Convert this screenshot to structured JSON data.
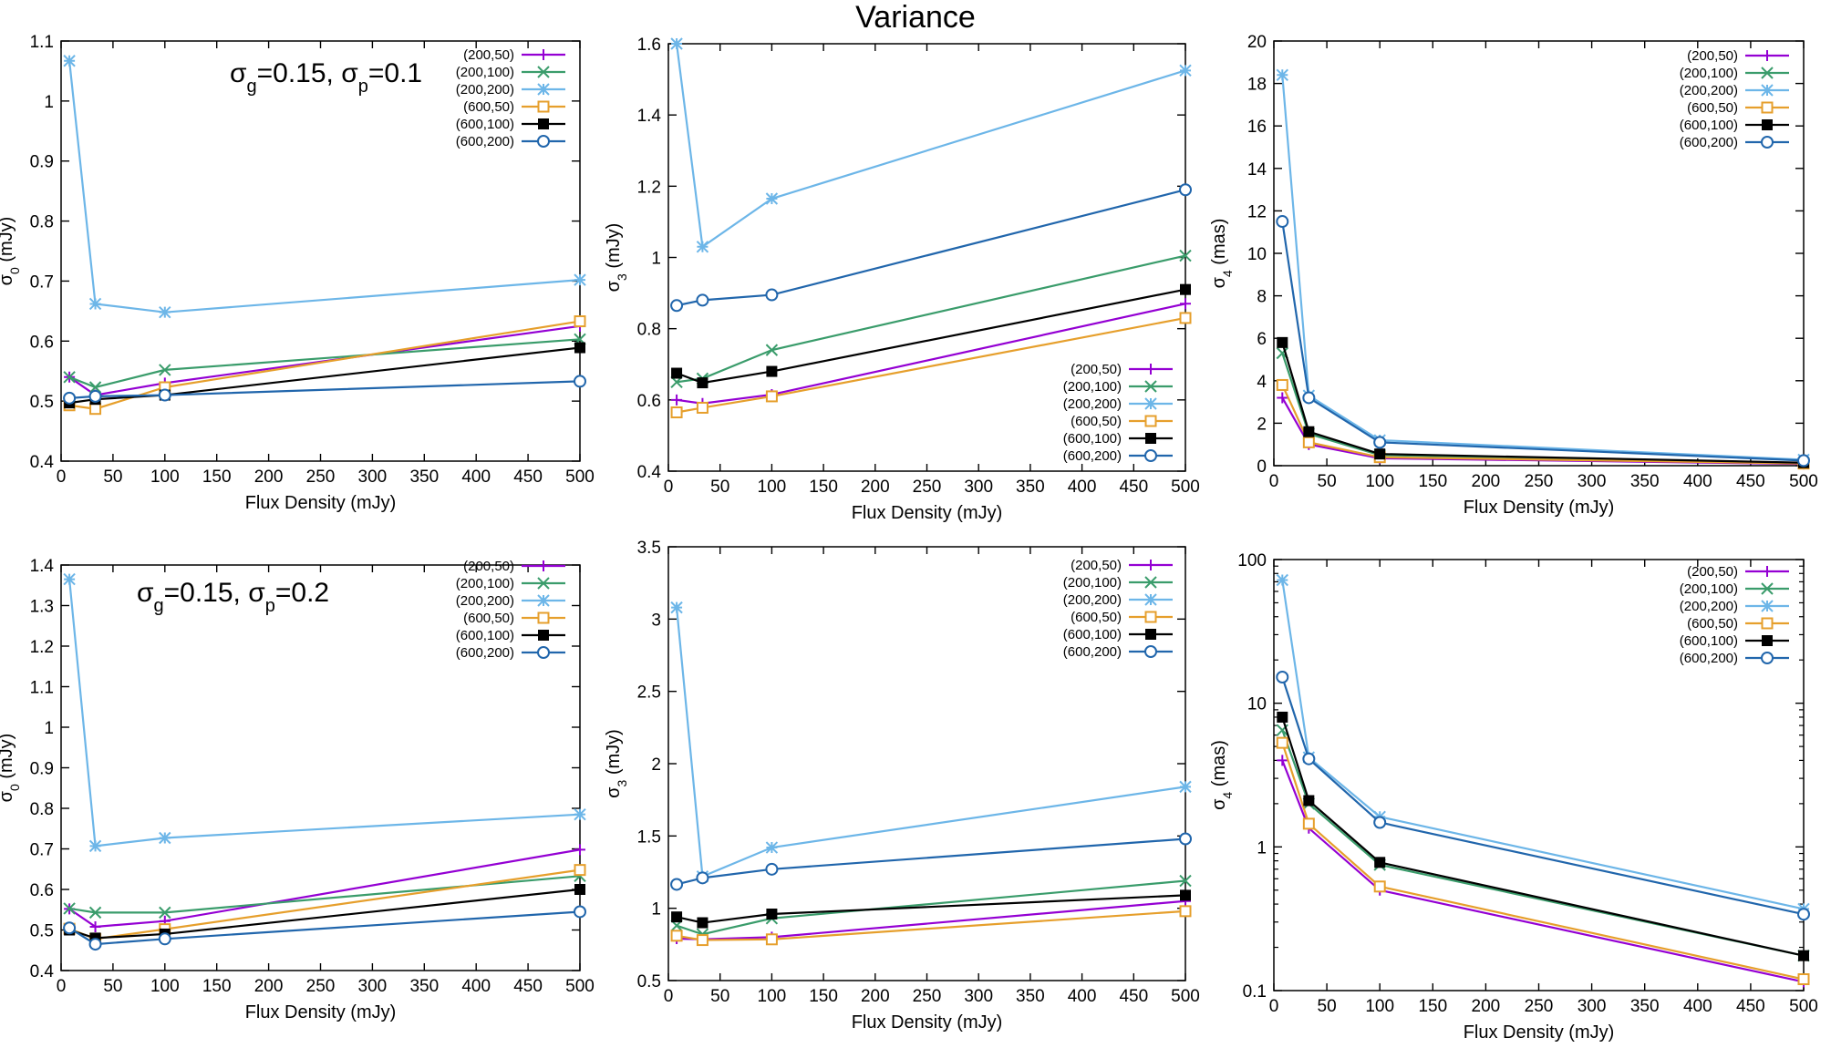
{
  "figure": {
    "title": "Variance"
  },
  "colors": {
    "(200,50)": "#9400d3",
    "(200,100)": "#3a9c6b",
    "(200,200)": "#6db6e8",
    "(600,50)": "#e69f2c",
    "(600,100)": "#000000",
    "(600,200)": "#2166ac"
  },
  "markers": {
    "(200,50)": "plus",
    "(200,100)": "cross",
    "(200,200)": "star",
    "(600,50)": "open-square",
    "(600,100)": "filled-square",
    "(600,200)": "open-circle"
  },
  "chart_data": [
    {
      "type": "line",
      "name": "top-left",
      "title": "",
      "xlabel": "Flux Density (mJy)",
      "ylabel": "σ_0 (mJy)",
      "ylabel_main": "σ",
      "ylabel_sub": "0",
      "ylabel_tail": " (mJy)",
      "annotation": {
        "s1": "σ",
        "s1sub": "g",
        "v1": "=0.15, ",
        "s2": "σ",
        "s2sub": "p",
        "v2": "=0.1"
      },
      "xlim": [
        0,
        500
      ],
      "ylim": [
        0.4,
        1.1
      ],
      "yscale": "linear",
      "xticks": [
        "0",
        "50",
        "100",
        "150",
        "200",
        "250",
        "300",
        "350",
        "400",
        "450",
        "500"
      ],
      "yticks": [
        "0.4",
        "0.5",
        "0.6",
        "0.7",
        "0.8",
        "0.9",
        "1",
        "1.1"
      ],
      "legend": "top-right",
      "x": [
        8,
        33,
        100,
        500
      ],
      "series": [
        {
          "name": "(200,50)",
          "values": [
            0.54,
            0.51,
            0.53,
            0.625
          ]
        },
        {
          "name": "(200,100)",
          "values": [
            0.54,
            0.523,
            0.552,
            0.603
          ]
        },
        {
          "name": "(200,200)",
          "values": [
            1.067,
            0.662,
            0.648,
            0.702
          ]
        },
        {
          "name": "(600,50)",
          "values": [
            0.493,
            0.487,
            0.523,
            0.633
          ]
        },
        {
          "name": "(600,100)",
          "values": [
            0.497,
            0.503,
            0.51,
            0.589
          ]
        },
        {
          "name": "(600,200)",
          "values": [
            0.505,
            0.508,
            0.51,
            0.533
          ]
        }
      ]
    },
    {
      "type": "line",
      "name": "top-middle",
      "title": "",
      "xlabel": "Flux Density (mJy)",
      "ylabel": "σ_3 (mJy)",
      "ylabel_main": "σ",
      "ylabel_sub": "3",
      "ylabel_tail": " (mJy)",
      "xlim": [
        0,
        500
      ],
      "ylim": [
        0.4,
        1.6
      ],
      "yscale": "linear",
      "xticks": [
        "0",
        "50",
        "100",
        "150",
        "200",
        "250",
        "300",
        "350",
        "400",
        "450",
        "500"
      ],
      "yticks": [
        "0.4",
        "0.6",
        "0.8",
        "1",
        "1.2",
        "1.4",
        "1.6"
      ],
      "legend": "bottom-right",
      "x": [
        8,
        33,
        100,
        500
      ],
      "series": [
        {
          "name": "(200,50)",
          "values": [
            0.6,
            0.59,
            0.615,
            0.87
          ]
        },
        {
          "name": "(200,100)",
          "values": [
            0.65,
            0.66,
            0.74,
            1.005
          ]
        },
        {
          "name": "(200,200)",
          "values": [
            1.6,
            1.03,
            1.165,
            1.525
          ]
        },
        {
          "name": "(600,50)",
          "values": [
            0.565,
            0.578,
            0.61,
            0.83
          ]
        },
        {
          "name": "(600,100)",
          "values": [
            0.675,
            0.648,
            0.68,
            0.91
          ]
        },
        {
          "name": "(600,200)",
          "values": [
            0.865,
            0.88,
            0.895,
            1.19
          ]
        }
      ]
    },
    {
      "type": "line",
      "name": "top-right",
      "title": "",
      "xlabel": "Flux Density (mJy)",
      "ylabel": "σ_4 (mas)",
      "ylabel_main": "σ",
      "ylabel_sub": "4",
      "ylabel_tail": " (mas)",
      "xlim": [
        0,
        500
      ],
      "ylim": [
        0,
        20
      ],
      "yscale": "linear",
      "xticks": [
        "0",
        "50",
        "100",
        "150",
        "200",
        "250",
        "300",
        "350",
        "400",
        "450",
        "500"
      ],
      "yticks": [
        "0",
        "2",
        "4",
        "6",
        "8",
        "10",
        "12",
        "14",
        "16",
        "18",
        "20"
      ],
      "legend": "top-right",
      "x": [
        8,
        33,
        100,
        500
      ],
      "series": [
        {
          "name": "(200,50)",
          "values": [
            3.2,
            1.0,
            0.35,
            0.08
          ]
        },
        {
          "name": "(200,100)",
          "values": [
            5.3,
            1.5,
            0.5,
            0.12
          ]
        },
        {
          "name": "(200,200)",
          "values": [
            18.4,
            3.3,
            1.2,
            0.28
          ]
        },
        {
          "name": "(600,50)",
          "values": [
            3.8,
            1.1,
            0.4,
            0.1
          ]
        },
        {
          "name": "(600,100)",
          "values": [
            5.8,
            1.6,
            0.55,
            0.14
          ]
        },
        {
          "name": "(600,200)",
          "values": [
            11.5,
            3.2,
            1.1,
            0.24
          ]
        }
      ]
    },
    {
      "type": "line",
      "name": "bottom-left",
      "title": "",
      "xlabel": "Flux Density (mJy)",
      "ylabel": "σ_0 (mJy)",
      "ylabel_main": "σ",
      "ylabel_sub": "0",
      "ylabel_tail": " (mJy)",
      "annotation": {
        "s1": "σ",
        "s1sub": "g",
        "v1": "=0.15, ",
        "s2": "σ",
        "s2sub": "p",
        "v2": "=0.2"
      },
      "xlim": [
        0,
        500
      ],
      "ylim": [
        0.4,
        1.4
      ],
      "yscale": "linear",
      "xticks": [
        "0",
        "50",
        "100",
        "150",
        "200",
        "250",
        "300",
        "350",
        "400",
        "450",
        "500"
      ],
      "yticks": [
        "0.4",
        "0.5",
        "0.6",
        "0.7",
        "0.8",
        "0.9",
        "1",
        "1.1",
        "1.2",
        "1.3",
        "1.4"
      ],
      "legend": "top-right",
      "x": [
        8,
        33,
        100,
        500
      ],
      "series": [
        {
          "name": "(200,50)",
          "values": [
            0.552,
            0.508,
            0.522,
            0.698
          ]
        },
        {
          "name": "(200,100)",
          "values": [
            0.553,
            0.543,
            0.543,
            0.633
          ]
        },
        {
          "name": "(200,200)",
          "values": [
            1.365,
            0.707,
            0.727,
            0.785
          ]
        },
        {
          "name": "(600,50)",
          "values": [
            0.503,
            0.478,
            0.502,
            0.648
          ]
        },
        {
          "name": "(600,100)",
          "values": [
            0.5,
            0.48,
            0.49,
            0.6
          ]
        },
        {
          "name": "(600,200)",
          "values": [
            0.505,
            0.465,
            0.478,
            0.545
          ]
        }
      ]
    },
    {
      "type": "line",
      "name": "bottom-middle",
      "title": "",
      "xlabel": "Flux Density (mJy)",
      "ylabel": "σ_3 (mJy)",
      "ylabel_main": "σ",
      "ylabel_sub": "3",
      "ylabel_tail": " (mJy)",
      "xlim": [
        0,
        500
      ],
      "ylim": [
        0.5,
        3.5
      ],
      "yscale": "linear",
      "xticks": [
        "0",
        "50",
        "100",
        "150",
        "200",
        "250",
        "300",
        "350",
        "400",
        "450",
        "500"
      ],
      "yticks": [
        "0.5",
        "1",
        "1.5",
        "2",
        "2.5",
        "3",
        "3.5"
      ],
      "legend": "top-right",
      "x": [
        8,
        33,
        100,
        500
      ],
      "series": [
        {
          "name": "(200,50)",
          "values": [
            0.79,
            0.785,
            0.8,
            1.05
          ]
        },
        {
          "name": "(200,100)",
          "values": [
            0.88,
            0.82,
            0.93,
            1.19
          ]
        },
        {
          "name": "(200,200)",
          "values": [
            3.08,
            1.22,
            1.42,
            1.84
          ]
        },
        {
          "name": "(600,50)",
          "values": [
            0.81,
            0.78,
            0.785,
            0.98
          ]
        },
        {
          "name": "(600,100)",
          "values": [
            0.94,
            0.9,
            0.96,
            1.09
          ]
        },
        {
          "name": "(600,200)",
          "values": [
            1.165,
            1.21,
            1.27,
            1.48
          ]
        }
      ]
    },
    {
      "type": "line",
      "name": "bottom-right",
      "title": "",
      "xlabel": "Flux Density (mJy)",
      "ylabel": "σ_4 (mas)",
      "ylabel_main": "σ",
      "ylabel_sub": "4",
      "ylabel_tail": " (mas)",
      "xlim": [
        0,
        500
      ],
      "ylim": [
        0.1,
        100
      ],
      "yscale": "log",
      "xticks": [
        "0",
        "50",
        "100",
        "150",
        "200",
        "250",
        "300",
        "350",
        "400",
        "450",
        "500"
      ],
      "yticks": [
        "0.1",
        "1",
        "10",
        "100"
      ],
      "legend": "top-right",
      "x": [
        8,
        33,
        100,
        500
      ],
      "series": [
        {
          "name": "(200,50)",
          "values": [
            4.0,
            1.35,
            0.5,
            0.115
          ]
        },
        {
          "name": "(200,100)",
          "values": [
            6.5,
            2.0,
            0.75,
            0.175
          ]
        },
        {
          "name": "(200,200)",
          "values": [
            72,
            4.2,
            1.62,
            0.37
          ]
        },
        {
          "name": "(600,50)",
          "values": [
            5.3,
            1.45,
            0.53,
            0.12
          ]
        },
        {
          "name": "(600,100)",
          "values": [
            8.0,
            2.1,
            0.78,
            0.175
          ]
        },
        {
          "name": "(600,200)",
          "values": [
            15.2,
            4.1,
            1.48,
            0.34
          ]
        }
      ]
    }
  ]
}
